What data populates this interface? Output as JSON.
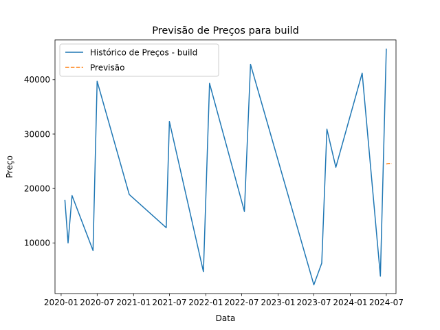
{
  "chart_data": {
    "type": "line",
    "title": "Previsão de Preços para build",
    "xlabel": "Data",
    "ylabel": "Preço",
    "x_axis": {
      "type": "date",
      "range": [
        "2019-12-01",
        "2024-08-19"
      ],
      "ticks": [
        "2020-01-01",
        "2020-07-01",
        "2021-01-01",
        "2021-07-01",
        "2022-01-01",
        "2022-07-01",
        "2023-01-01",
        "2023-07-01",
        "2024-01-01",
        "2024-07-01"
      ],
      "tick_labels": [
        "2020-01",
        "2020-07",
        "2021-01",
        "2021-07",
        "2022-01",
        "2022-07",
        "2023-01",
        "2023-07",
        "2024-01",
        "2024-07"
      ]
    },
    "y_axis": {
      "range": [
        700,
        47300
      ],
      "ticks": [
        10000,
        20000,
        30000,
        40000
      ],
      "tick_labels": [
        "10000",
        "20000",
        "30000",
        "40000"
      ]
    },
    "grid": false,
    "legend": "upper-left",
    "series": [
      {
        "name": "Histórico de Preços - build",
        "style": "solid",
        "color": "#1f77b4",
        "points": [
          {
            "x": "2020-01-20",
            "y": 17900
          },
          {
            "x": "2020-02-05",
            "y": 10000
          },
          {
            "x": "2020-02-25",
            "y": 18700
          },
          {
            "x": "2020-06-10",
            "y": 8600
          },
          {
            "x": "2020-07-01",
            "y": 39700
          },
          {
            "x": "2020-12-10",
            "y": 18900
          },
          {
            "x": "2021-06-15",
            "y": 12800
          },
          {
            "x": "2021-07-01",
            "y": 32300
          },
          {
            "x": "2021-12-20",
            "y": 4700
          },
          {
            "x": "2022-01-20",
            "y": 39300
          },
          {
            "x": "2022-07-15",
            "y": 15800
          },
          {
            "x": "2022-08-15",
            "y": 42800
          },
          {
            "x": "2023-07-01",
            "y": 2300
          },
          {
            "x": "2023-08-10",
            "y": 6300
          },
          {
            "x": "2023-09-05",
            "y": 30900
          },
          {
            "x": "2023-10-20",
            "y": 23900
          },
          {
            "x": "2024-03-01",
            "y": 41200
          },
          {
            "x": "2024-06-01",
            "y": 3900
          },
          {
            "x": "2024-07-01",
            "y": 45700
          }
        ]
      },
      {
        "name": "Previsão",
        "style": "dashed",
        "color": "#ff7f0e",
        "points": [
          {
            "x": "2024-07-01",
            "y": 24500
          },
          {
            "x": "2024-07-15",
            "y": 24600
          },
          {
            "x": "2024-07-29",
            "y": 24600
          }
        ]
      }
    ]
  }
}
